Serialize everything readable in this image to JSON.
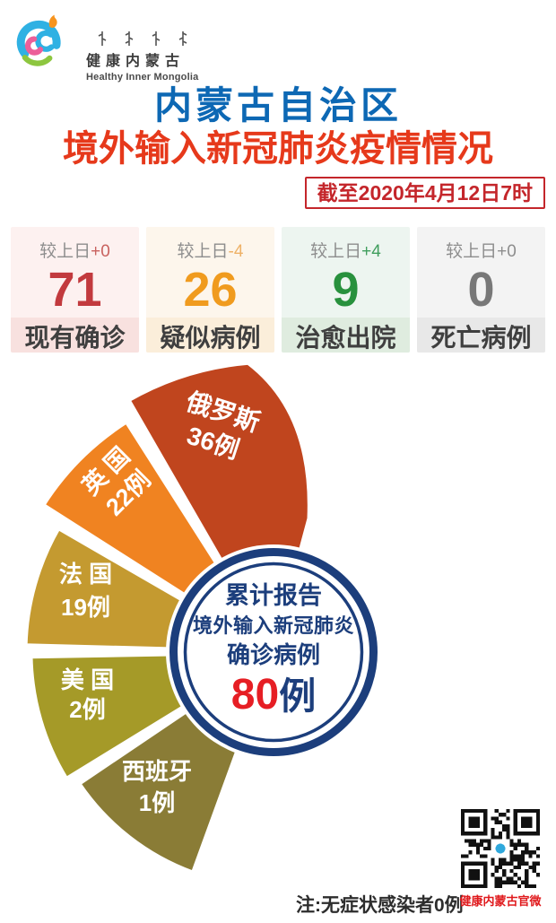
{
  "logo": {
    "name_cn": "健康内蒙古",
    "name_en": "Healthy Inner Mongolia"
  },
  "title": {
    "line1": "内蒙古自治区",
    "line2": "境外输入新冠肺炎疫情情况"
  },
  "as_of": "截至2020年4月12日7时",
  "stats": [
    {
      "delta_label": "较上日",
      "delta": "+0",
      "value": "71",
      "label": "现有确诊"
    },
    {
      "delta_label": "较上日",
      "delta": "-4",
      "value": "26",
      "label": "疑似病例"
    },
    {
      "delta_label": "较上日",
      "delta": "+4",
      "value": "9",
      "label": "治愈出院"
    },
    {
      "delta_label": "较上日",
      "delta": "+0",
      "value": "0",
      "label": "死亡病例"
    }
  ],
  "chart_data": {
    "type": "pie",
    "title_lines": [
      "累计报告",
      "境外输入新冠肺炎",
      "确诊病例"
    ],
    "total_value": "80",
    "total_unit": "例",
    "total_label": "80例",
    "legend_position": "on-slice",
    "slices": [
      {
        "country": "俄罗斯",
        "cases": 36,
        "case_label": "36例",
        "color": "#c0451e"
      },
      {
        "country": "英 国",
        "cases": 22,
        "case_label": "22例",
        "color": "#f08321"
      },
      {
        "country": "法 国",
        "cases": 19,
        "case_label": "19例",
        "color": "#c49a30"
      },
      {
        "country": "美 国",
        "cases": 2,
        "case_label": "2例",
        "color": "#a59a28"
      },
      {
        "country": "西班牙",
        "cases": 1,
        "case_label": "1例",
        "color": "#8a7c36"
      }
    ]
  },
  "footer": {
    "note": "注:无症状感染者0例",
    "qr_label": "健康内蒙古官微"
  },
  "colors": {
    "title_blue": "#0d68b4",
    "title_red": "#e6391b",
    "date_red": "#c4262b",
    "ring_navy": "#1c3e7c",
    "total_red": "#e61e24"
  }
}
